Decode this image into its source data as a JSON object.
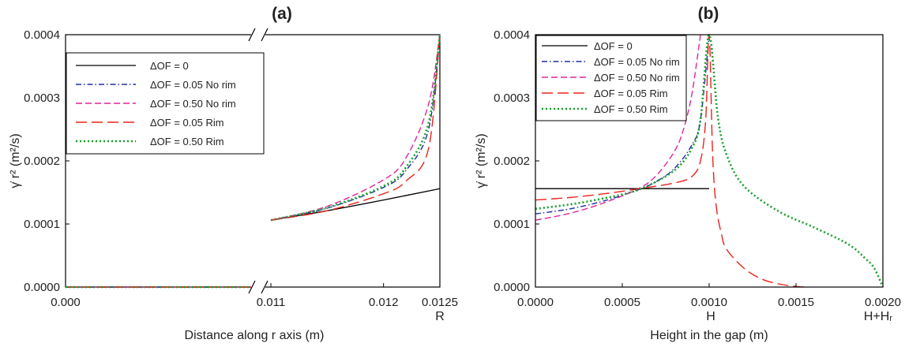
{
  "chart_data": [
    {
      "panel": "(a)",
      "type": "line",
      "xlabel": "Distance along r axis (m)",
      "ylabel": "γ̇ r² (m²/s)",
      "x_ticks": [
        "0.000",
        "0.011",
        "0.012",
        "0.0125"
      ],
      "x_extra_label": "R",
      "y_ticks": [
        "0.0000",
        "0.0001",
        "0.0002",
        "0.0003",
        "0.0004"
      ],
      "ylim": [
        0,
        0.0004
      ],
      "x_axis_break": {
        "low": [
          0,
          0.011
        ],
        "high": [
          0.011,
          0.0125
        ]
      },
      "legend_position": "top-left",
      "grid": false,
      "series": [
        {
          "name": "ΔOF = 0",
          "color": "#000000",
          "dash": "solid",
          "x": [
            0,
            0.011,
            0.0115,
            0.012,
            0.0125
          ],
          "y": [
            0,
            0.000106,
            0.000121,
            0.000138,
            0.000156
          ]
        },
        {
          "name": "ΔOF = 0.05 No rim",
          "color": "#1f2ea8",
          "dash": "dashdot",
          "x": [
            0,
            0.011,
            0.0115,
            0.012,
            0.0122,
            0.0124,
            0.0125
          ],
          "y": [
            0,
            0.000106,
            0.000125,
            0.000158,
            0.000185,
            0.00025,
            0.0004
          ]
        },
        {
          "name": "ΔOF = 0.50 No rim",
          "color": "#e0259a",
          "dash": "dash",
          "x": [
            0,
            0.011,
            0.0115,
            0.012,
            0.0122,
            0.0124,
            0.0125
          ],
          "y": [
            0,
            0.000106,
            0.000128,
            0.00017,
            0.000205,
            0.00029,
            0.0004
          ]
        },
        {
          "name": "ΔOF = 0.05 Rim",
          "color": "#e8231e",
          "dash": "longdash",
          "x": [
            0,
            0.011,
            0.0115,
            0.012,
            0.0122,
            0.0124,
            0.0125
          ],
          "y": [
            0,
            0.000106,
            0.000121,
            0.000148,
            0.000168,
            0.00022,
            0.0004
          ]
        },
        {
          "name": "ΔOF = 0.50 Rim",
          "color": "#16a02a",
          "dash": "dot",
          "x": [
            0,
            0.011,
            0.0115,
            0.012,
            0.0122,
            0.0124,
            0.0125
          ],
          "y": [
            0,
            0.000106,
            0.000126,
            0.00016,
            0.00019,
            0.00026,
            0.0004
          ]
        }
      ]
    },
    {
      "panel": "(b)",
      "type": "line",
      "xlabel": "Height in the gap (m)",
      "ylabel": "γ̇ r² (m²/s)",
      "x_ticks": [
        "0.0000",
        "0.0005",
        "0.0010",
        "0.0015",
        "0.0020"
      ],
      "x_extra_labels": [
        "H",
        "H+Hᵣ"
      ],
      "y_ticks": [
        "0.0000",
        "0.0001",
        "0.0002",
        "0.0003",
        "0.0004"
      ],
      "xlim": [
        0,
        0.002
      ],
      "ylim": [
        0,
        0.0004
      ],
      "legend_position": "top-left",
      "grid": false,
      "series": [
        {
          "name": "ΔOF = 0",
          "color": "#000000",
          "dash": "solid",
          "x": [
            0,
            0.001
          ],
          "y": [
            0.000156,
            0.000156
          ]
        },
        {
          "name": "ΔOF = 0.05 No rim",
          "color": "#1f2ea8",
          "dash": "dashdot",
          "x": [
            0,
            0.0002,
            0.0004,
            0.0006,
            0.0007,
            0.0008,
            0.0009,
            0.00095,
            0.001
          ],
          "y": [
            0.000116,
            0.000124,
            0.000137,
            0.000155,
            0.000168,
            0.000188,
            0.000225,
            0.000265,
            0.0004
          ]
        },
        {
          "name": "ΔOF = 0.50 No rim",
          "color": "#e0259a",
          "dash": "dash",
          "x": [
            0,
            0.0002,
            0.0004,
            0.0006,
            0.0007,
            0.0008,
            0.00085,
            0.0009,
            0.00095
          ],
          "y": [
            0.000106,
            0.000117,
            0.000134,
            0.000157,
            0.000178,
            0.000215,
            0.000248,
            0.000305,
            0.0004
          ]
        },
        {
          "name": "ΔOF = 0.05 Rim",
          "color": "#e8231e",
          "dash": "longdash",
          "x": [
            0,
            0.0002,
            0.0004,
            0.0006,
            0.0008,
            0.0009,
            0.00095,
            0.00098,
            0.001,
            0.00102,
            0.00104,
            0.00107,
            0.0011,
            0.0012,
            0.0013,
            0.0014,
            0.0015,
            0.00155
          ],
          "y": [
            0.000138,
            0.000142,
            0.000148,
            0.000156,
            0.000165,
            0.000175,
            0.0002,
            0.000265,
            0.0004,
            0.00021,
            0.00013,
            8.5e-05,
            6e-05,
            3e-05,
            1.3e-05,
            5e-06,
            1e-06,
            0
          ]
        },
        {
          "name": "ΔOF = 0.50 Rim",
          "color": "#16a02a",
          "dash": "dot",
          "x": [
            0,
            0.0002,
            0.0004,
            0.0006,
            0.0008,
            0.0009,
            0.00095,
            0.001,
            0.00105,
            0.0011,
            0.0012,
            0.0014,
            0.0016,
            0.0018,
            0.0019,
            0.00195,
            0.002
          ],
          "y": [
            0.000124,
            0.000131,
            0.000141,
            0.000155,
            0.000185,
            0.00022,
            0.000265,
            0.0004,
            0.00027,
            0.00021,
            0.00016,
            0.00012,
            9.5e-05,
            6.8e-05,
            4.5e-05,
            3e-05,
            0
          ]
        }
      ]
    }
  ]
}
